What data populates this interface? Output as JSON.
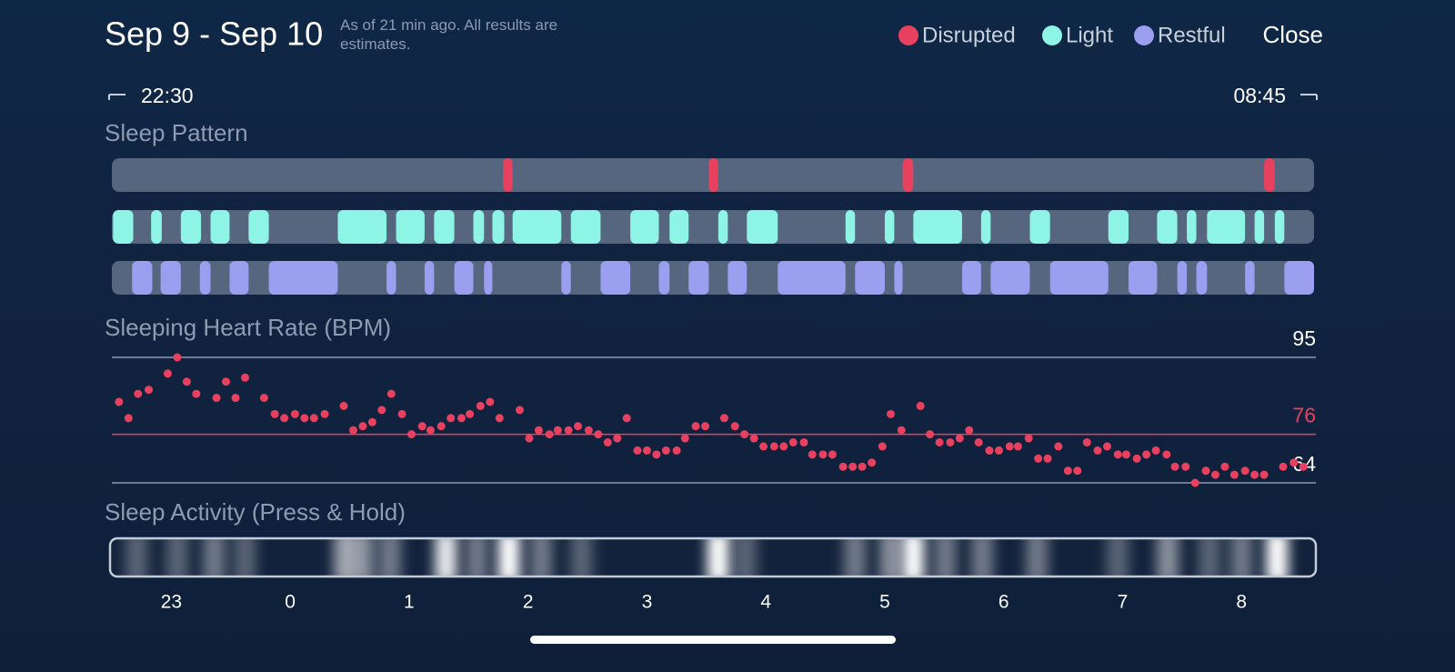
{
  "header": {
    "title": "Sep 9 - Sep 10",
    "note": "As of 21 min ago. All results are estimates.",
    "close": "Close"
  },
  "chart_data": [
    {
      "type": "timeline",
      "title": "Sleep Pattern",
      "start_label": "22:30",
      "end_label": "08:45",
      "xlim": [
        22.5,
        32.61
      ],
      "series": [
        {
          "name": "Disrupted",
          "color": "#e8415f",
          "segments": [
            [
              25.79,
              25.87
            ],
            [
              27.52,
              27.6
            ],
            [
              29.15,
              29.24
            ],
            [
              32.19,
              32.28
            ]
          ]
        },
        {
          "name": "Light",
          "color": "#8ef5e6",
          "segments": [
            [
              22.51,
              22.68
            ],
            [
              22.83,
              22.92
            ],
            [
              23.08,
              23.25
            ],
            [
              23.33,
              23.49
            ],
            [
              23.65,
              23.82
            ],
            [
              24.4,
              24.81
            ],
            [
              24.89,
              25.13
            ],
            [
              25.21,
              25.38
            ],
            [
              25.54,
              25.63
            ],
            [
              25.7,
              25.8
            ],
            [
              25.87,
              26.28
            ],
            [
              26.36,
              26.61
            ],
            [
              26.86,
              27.1
            ],
            [
              27.19,
              27.35
            ],
            [
              27.6,
              27.68
            ],
            [
              27.84,
              28.1
            ],
            [
              28.67,
              28.75
            ],
            [
              29.0,
              29.08
            ],
            [
              29.24,
              29.65
            ],
            [
              29.81,
              29.89
            ],
            [
              30.22,
              30.39
            ],
            [
              30.88,
              31.05
            ],
            [
              31.29,
              31.46
            ],
            [
              31.54,
              31.62
            ],
            [
              31.71,
              32.03
            ],
            [
              32.11,
              32.19
            ],
            [
              32.28,
              32.36
            ]
          ]
        },
        {
          "name": "Restful",
          "color": "#9c9ef0",
          "segments": [
            [
              22.67,
              22.84
            ],
            [
              22.91,
              23.08
            ],
            [
              23.24,
              23.33
            ],
            [
              23.49,
              23.65
            ],
            [
              23.82,
              24.4
            ],
            [
              24.81,
              24.89
            ],
            [
              25.13,
              25.21
            ],
            [
              25.38,
              25.54
            ],
            [
              25.63,
              25.7
            ],
            [
              26.28,
              26.36
            ],
            [
              26.61,
              26.86
            ],
            [
              27.1,
              27.19
            ],
            [
              27.35,
              27.52
            ],
            [
              27.68,
              27.84
            ],
            [
              28.1,
              28.67
            ],
            [
              28.75,
              29.0
            ],
            [
              29.08,
              29.15
            ],
            [
              29.65,
              29.81
            ],
            [
              29.89,
              30.22
            ],
            [
              30.39,
              30.88
            ],
            [
              31.05,
              31.29
            ],
            [
              31.46,
              31.54
            ],
            [
              31.62,
              31.71
            ],
            [
              32.03,
              32.11
            ],
            [
              32.36,
              32.61
            ]
          ]
        }
      ]
    },
    {
      "type": "scatter",
      "title": "Sleeping Heart Rate (BPM)",
      "color": "#e8415f",
      "xlim": [
        22.5,
        32.61
      ],
      "ylim": [
        64,
        95
      ],
      "yticks": [
        64,
        95
      ],
      "average": 76,
      "x": [
        22.56,
        22.64,
        22.72,
        22.81,
        22.97,
        23.05,
        23.13,
        23.21,
        23.38,
        23.46,
        23.54,
        23.62,
        23.78,
        23.87,
        23.95,
        24.04,
        24.12,
        24.2,
        24.29,
        24.45,
        24.53,
        24.61,
        24.69,
        24.77,
        24.85,
        24.94,
        25.02,
        25.11,
        25.18,
        25.27,
        25.35,
        25.44,
        25.51,
        25.6,
        25.68,
        25.76,
        25.93,
        26.01,
        26.09,
        26.18,
        26.25,
        26.34,
        26.42,
        26.51,
        26.59,
        26.67,
        26.75,
        26.83,
        26.92,
        27.0,
        27.08,
        27.16,
        27.25,
        27.32,
        27.41,
        27.49,
        27.65,
        27.74,
        27.82,
        27.9,
        27.98,
        28.07,
        28.15,
        28.23,
        28.32,
        28.39,
        28.48,
        28.56,
        28.65,
        28.73,
        28.81,
        28.89,
        28.98,
        29.05,
        29.14,
        29.3,
        29.38,
        29.46,
        29.55,
        29.63,
        29.71,
        29.79,
        29.88,
        29.96,
        30.05,
        30.12,
        30.21,
        30.29,
        30.37,
        30.46,
        30.54,
        30.62,
        30.7,
        30.79,
        30.87,
        30.96,
        31.03,
        31.12,
        31.2,
        31.28,
        31.37,
        31.44,
        31.53,
        31.61,
        31.7,
        31.78,
        31.86,
        31.94,
        32.03,
        32.11,
        32.19,
        32.35,
        32.44,
        32.52
      ],
      "values": [
        84,
        80,
        86,
        87,
        91,
        95,
        89,
        86,
        85,
        89,
        85,
        90,
        85,
        81,
        80,
        81,
        80,
        80,
        81,
        83,
        77,
        78,
        79,
        82,
        86,
        81,
        76,
        78,
        77,
        78,
        80,
        80,
        81,
        83,
        84,
        80,
        82,
        75,
        77,
        76,
        77,
        77,
        78,
        77,
        76,
        74,
        75,
        80,
        72,
        72,
        71,
        72,
        72,
        75,
        78,
        78,
        80,
        78,
        76,
        75,
        73,
        73,
        73,
        74,
        74,
        71,
        71,
        71,
        68,
        68,
        68,
        69,
        73,
        81,
        77,
        83,
        76,
        74,
        74,
        75,
        77,
        74,
        72,
        72,
        73,
        73,
        75,
        70,
        70,
        73,
        67,
        67,
        74,
        72,
        73,
        71,
        71,
        70,
        71,
        72,
        71,
        68,
        68,
        64,
        67,
        66,
        68,
        66,
        67,
        66,
        66,
        68,
        69,
        68
      ]
    },
    {
      "type": "heatstrip",
      "title": "Sleep Activity (Press & Hold)",
      "color": "#ffffff",
      "xlim": [
        22.5,
        32.61
      ],
      "xticks": [
        23,
        {
          "value": 24,
          "label": "0"
        },
        {
          "value": 25,
          "label": "1"
        },
        {
          "value": 26,
          "label": "2"
        },
        {
          "value": 27,
          "label": "3"
        },
        {
          "value": 28,
          "label": "4"
        },
        {
          "value": 29,
          "label": "5"
        },
        {
          "value": 30,
          "label": "6"
        },
        {
          "value": 31,
          "label": "7"
        },
        {
          "value": 32,
          "label": "8"
        }
      ],
      "x": [
        22.71,
        23.05,
        23.36,
        23.62,
        24.46,
        24.61,
        24.84,
        25.31,
        25.57,
        25.84,
        26.11,
        26.45,
        27.6,
        27.83,
        28.75,
        29.05,
        29.24,
        29.51,
        29.82,
        30.28,
        30.96,
        31.38,
        31.73,
        32.0,
        32.3
      ],
      "values": [
        0.3,
        0.3,
        0.4,
        0.3,
        0.6,
        0.5,
        0.4,
        0.9,
        0.4,
        1.0,
        0.4,
        0.3,
        1.0,
        0.3,
        0.4,
        0.5,
        1.0,
        0.4,
        0.4,
        0.4,
        0.3,
        0.5,
        0.3,
        0.4,
        1.0
      ]
    }
  ]
}
